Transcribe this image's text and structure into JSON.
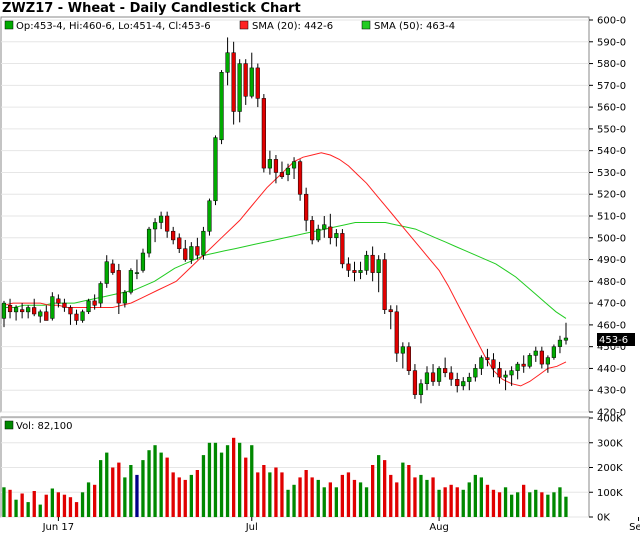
{
  "title": "ZWZ17 - Wheat - Daily Candlestick Chart",
  "legend": {
    "ohlc": "Op:453-4, Hi:460-6, Lo:451-4, Cl:453-6",
    "sma20": "SMA (20): 442-6",
    "sma50": "SMA (50): 463-4",
    "volume": "Vol: 82,100"
  },
  "last_price_label": "453-6",
  "colors": {
    "up": "#00aa00",
    "down": "#e00000",
    "sma20": "#ff2222",
    "sma50": "#22cc22",
    "vol_up": "#008800",
    "vol_down": "#e00000",
    "vol_flat": "#000088",
    "grid": "#e6e6e6"
  },
  "chart_data": {
    "type": "candlestick",
    "price_axis": {
      "min": 420,
      "max": 600,
      "ticks": [
        "600-0",
        "590-0",
        "580-0",
        "570-0",
        "560-0",
        "550-0",
        "540-0",
        "530-0",
        "520-0",
        "510-0",
        "500-0",
        "490-0",
        "480-0",
        "470-0",
        "460-0",
        "450-0",
        "440-0",
        "430-0",
        "420-0"
      ]
    },
    "volume_axis": {
      "min": 0,
      "max": 400000,
      "ticks": [
        "400K",
        "300K",
        "200K",
        "100K",
        "0K"
      ]
    },
    "x_labels": [
      {
        "label": "Jun 17",
        "bar": 9
      },
      {
        "label": "Jul",
        "bar": 41
      },
      {
        "label": "Aug",
        "bar": 72
      },
      {
        "label": "Sep",
        "bar": 105
      }
    ],
    "candles": [
      [
        463,
        471,
        459,
        470,
        120000
      ],
      [
        469,
        472,
        463,
        466,
        110000
      ],
      [
        466,
        469,
        462,
        468,
        70000
      ],
      [
        467,
        470,
        463,
        466,
        95000
      ],
      [
        466,
        469,
        463,
        468,
        60000
      ],
      [
        468,
        472,
        464,
        465,
        105000
      ],
      [
        464,
        467,
        461,
        466,
        50000
      ],
      [
        466,
        469,
        463,
        462,
        90000
      ],
      [
        463,
        475,
        462,
        473,
        115000
      ],
      [
        472,
        474,
        468,
        470,
        100000
      ],
      [
        470,
        472,
        466,
        468,
        90000
      ],
      [
        468,
        469,
        460,
        465,
        80000
      ],
      [
        465,
        467,
        460,
        462,
        60000
      ],
      [
        462,
        467,
        461,
        466,
        100000
      ],
      [
        466,
        472,
        465,
        471,
        140000
      ],
      [
        471,
        474,
        467,
        469,
        130000
      ],
      [
        470,
        480,
        468,
        479,
        230000
      ],
      [
        479,
        492,
        477,
        489,
        260000
      ],
      [
        488,
        490,
        483,
        484,
        200000
      ],
      [
        485,
        488,
        465,
        470,
        220000
      ],
      [
        470,
        476,
        468,
        475,
        160000
      ],
      [
        475,
        486,
        474,
        485,
        210000
      ],
      [
        484,
        490,
        481,
        484,
        170000
      ],
      [
        485,
        495,
        484,
        493,
        230000
      ],
      [
        493,
        505,
        491,
        504,
        270000
      ],
      [
        504,
        509,
        498,
        507,
        290000
      ],
      [
        507,
        512,
        504,
        510,
        260000
      ],
      [
        510,
        512,
        500,
        503,
        240000
      ],
      [
        503,
        505,
        497,
        499,
        180000
      ],
      [
        500,
        502,
        493,
        495,
        160000
      ],
      [
        495,
        499,
        489,
        490,
        150000
      ],
      [
        490,
        498,
        488,
        496,
        170000
      ],
      [
        496,
        500,
        490,
        492,
        190000
      ],
      [
        492,
        505,
        490,
        503,
        250000
      ],
      [
        503,
        518,
        501,
        517,
        300000
      ],
      [
        517,
        547,
        515,
        546,
        300000
      ],
      [
        545,
        577,
        543,
        576,
        260000
      ],
      [
        576,
        592,
        570,
        585,
        290000
      ],
      [
        585,
        590,
        552,
        558,
        320000
      ],
      [
        558,
        582,
        553,
        580,
        300000
      ],
      [
        580,
        582,
        561,
        565,
        240000
      ],
      [
        565,
        585,
        564,
        578,
        290000
      ],
      [
        578,
        580,
        560,
        564,
        180000
      ],
      [
        564,
        566,
        530,
        532,
        210000
      ],
      [
        532,
        540,
        529,
        536,
        180000
      ],
      [
        536,
        538,
        525,
        530,
        200000
      ],
      [
        530,
        535,
        527,
        528,
        180000
      ],
      [
        529,
        534,
        526,
        532,
        110000
      ],
      [
        532,
        537,
        527,
        535,
        130000
      ],
      [
        535,
        536,
        517,
        520,
        160000
      ],
      [
        520,
        523,
        503,
        508,
        190000
      ],
      [
        508,
        510,
        497,
        499,
        160000
      ],
      [
        499,
        506,
        498,
        504,
        150000
      ],
      [
        504,
        510,
        500,
        506,
        120000
      ],
      [
        505,
        511,
        497,
        500,
        140000
      ],
      [
        500,
        504,
        496,
        502,
        120000
      ],
      [
        502,
        504,
        486,
        488,
        170000
      ],
      [
        488,
        491,
        482,
        485,
        180000
      ],
      [
        485,
        489,
        480,
        484,
        150000
      ],
      [
        484,
        489,
        481,
        485,
        140000
      ],
      [
        485,
        494,
        483,
        492,
        120000
      ],
      [
        492,
        496,
        480,
        484,
        210000
      ],
      [
        484,
        492,
        475,
        490,
        250000
      ],
      [
        490,
        493,
        465,
        467,
        230000
      ],
      [
        467,
        469,
        458,
        466,
        170000
      ],
      [
        466,
        469,
        443,
        447,
        140000
      ],
      [
        447,
        452,
        440,
        450,
        220000
      ],
      [
        450,
        452,
        437,
        439,
        210000
      ],
      [
        439,
        442,
        426,
        428,
        160000
      ],
      [
        428,
        435,
        424,
        433,
        170000
      ],
      [
        433,
        441,
        430,
        438,
        150000
      ],
      [
        438,
        442,
        432,
        434,
        160000
      ],
      [
        434,
        441,
        432,
        440,
        110000
      ],
      [
        440,
        445,
        436,
        438,
        120000
      ],
      [
        438,
        441,
        432,
        435,
        130000
      ],
      [
        435,
        438,
        429,
        432,
        120000
      ],
      [
        432,
        436,
        430,
        434,
        110000
      ],
      [
        434,
        438,
        430,
        436,
        140000
      ],
      [
        436,
        442,
        434,
        440,
        170000
      ],
      [
        440,
        446,
        437,
        445,
        160000
      ],
      [
        445,
        449,
        441,
        444,
        130000
      ],
      [
        444,
        447,
        436,
        440,
        110000
      ],
      [
        440,
        443,
        433,
        436,
        100000
      ],
      [
        436,
        439,
        430,
        437,
        120000
      ],
      [
        437,
        441,
        432,
        439,
        90000
      ],
      [
        439,
        443,
        435,
        442,
        100000
      ],
      [
        442,
        446,
        438,
        441,
        130000
      ],
      [
        441,
        447,
        440,
        446,
        100000
      ],
      [
        446,
        450,
        443,
        448,
        110000
      ],
      [
        448,
        450,
        440,
        442,
        100000
      ],
      [
        442,
        446,
        438,
        445,
        90000
      ],
      [
        445,
        451,
        444,
        450,
        100000
      ],
      [
        450,
        455,
        447,
        453,
        120000
      ],
      [
        453,
        461,
        451,
        454,
        82100
      ]
    ],
    "sma20": [
      469,
      470,
      470,
      470,
      470,
      469,
      469,
      468,
      468,
      468,
      468,
      468,
      468,
      469,
      470,
      472,
      474,
      476,
      478,
      480,
      484,
      488,
      492,
      496,
      500,
      504,
      508,
      513,
      518,
      523,
      527,
      531,
      535,
      537,
      538,
      539,
      538,
      536,
      533,
      529,
      525,
      520,
      515,
      510,
      505,
      500,
      495,
      490,
      485,
      478,
      470,
      462,
      454,
      446,
      439,
      435,
      433,
      432,
      434,
      437,
      440,
      441,
      443
    ],
    "sma20_start": 0,
    "sma50": [
      468,
      468,
      469,
      469,
      469,
      470,
      470,
      470,
      471,
      472,
      473,
      474,
      475,
      476,
      478,
      480,
      483,
      486,
      488,
      490,
      492,
      493,
      494,
      495,
      496,
      497,
      498,
      499,
      500,
      501,
      502,
      503,
      504,
      505,
      506,
      507,
      507,
      507,
      507,
      506,
      505,
      504,
      502,
      500,
      498,
      496,
      494,
      492,
      490,
      488,
      485,
      482,
      478,
      474,
      470,
      466,
      463
    ],
    "sma50_start": 0
  }
}
